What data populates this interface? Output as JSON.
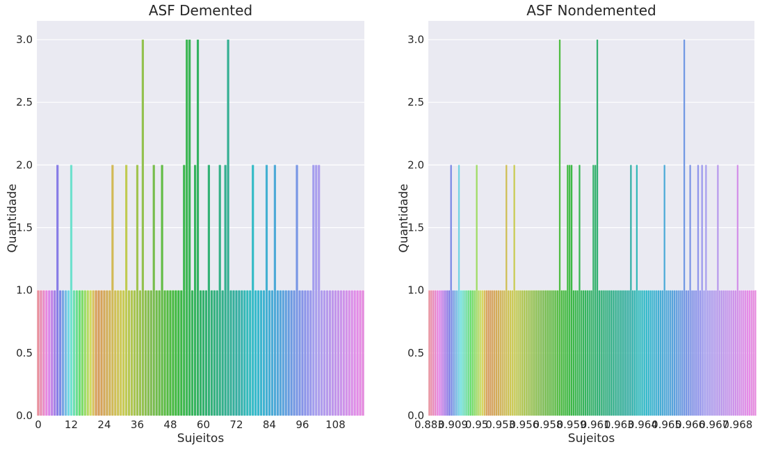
{
  "chart_data": [
    {
      "type": "bar",
      "title": "ASF Demented",
      "xlabel": "Sujeitos",
      "ylabel": "Quantidade",
      "ylim": [
        0,
        3.15
      ],
      "yticks": [
        "0.0",
        "0.5",
        "1.0",
        "1.5",
        "2.0",
        "2.5",
        "3.0"
      ],
      "ytick_values": [
        0,
        0.5,
        1.0,
        1.5,
        2.0,
        2.5,
        3.0
      ],
      "xticks": [
        "0",
        "12",
        "24",
        "36",
        "48",
        "60",
        "72",
        "84",
        "96",
        "108"
      ],
      "xtick_positions": [
        0,
        12,
        24,
        36,
        48,
        60,
        72,
        84,
        96,
        108
      ],
      "n_categories": 119,
      "grid": true,
      "palette": "husl",
      "values": [
        1,
        1,
        1,
        1,
        1,
        1,
        1,
        2,
        1,
        1,
        1,
        1,
        2,
        1,
        1,
        1,
        1,
        1,
        1,
        1,
        1,
        1,
        1,
        1,
        1,
        1,
        1,
        2,
        1,
        1,
        1,
        1,
        2,
        1,
        1,
        1,
        2,
        1,
        3,
        1,
        1,
        1,
        2,
        1,
        1,
        2,
        1,
        1,
        1,
        1,
        1,
        1,
        1,
        2,
        3,
        3,
        1,
        2,
        3,
        1,
        1,
        1,
        2,
        1,
        1,
        1,
        2,
        1,
        2,
        3,
        1,
        1,
        1,
        1,
        1,
        1,
        1,
        1,
        2,
        1,
        1,
        1,
        1,
        2,
        1,
        1,
        2,
        1,
        1,
        1,
        1,
        1,
        1,
        1,
        2,
        1,
        1,
        1,
        1,
        1,
        2,
        2,
        2,
        1,
        1,
        1,
        1,
        1,
        1,
        1,
        1,
        1,
        1,
        1,
        1,
        1,
        1,
        1,
        1
      ]
    },
    {
      "type": "bar",
      "title": "ASF Nondemented",
      "xlabel": "Sujeitos",
      "ylabel": "Quantidade",
      "ylim": [
        0,
        3.15
      ],
      "yticks": [
        "0.0",
        "0.5",
        "1.0",
        "1.5",
        "2.0",
        "2.5",
        "3.0"
      ],
      "ytick_values": [
        0,
        0.5,
        1.0,
        1.5,
        2.0,
        2.5,
        3.0
      ],
      "xticks": [
        "0.883",
        "0.909",
        "0.95",
        "0.953",
        "0.956",
        "0.958",
        "0.959",
        "0.961",
        "0.963",
        "0.964",
        "0.965",
        "0.966",
        "0.967",
        "0.968"
      ],
      "xtick_positions": [
        0,
        12,
        24,
        36,
        48,
        60,
        72,
        84,
        96,
        108,
        120,
        132,
        144,
        156
      ],
      "n_categories": 165,
      "grid": true,
      "palette": "husl",
      "values": [
        1,
        1,
        1,
        1,
        1,
        1,
        1,
        1,
        1,
        1,
        1,
        2,
        1,
        1,
        1,
        2,
        1,
        1,
        1,
        1,
        1,
        1,
        1,
        1,
        2,
        1,
        1,
        1,
        1,
        1,
        1,
        1,
        1,
        1,
        1,
        1,
        1,
        1,
        1,
        2,
        1,
        1,
        1,
        2,
        1,
        1,
        1,
        1,
        1,
        1,
        1,
        1,
        1,
        1,
        1,
        1,
        1,
        1,
        1,
        1,
        1,
        1,
        1,
        1,
        1,
        1,
        3,
        1,
        1,
        1,
        2,
        2,
        2,
        1,
        1,
        1,
        2,
        1,
        1,
        1,
        1,
        1,
        1,
        2,
        2,
        3,
        1,
        1,
        1,
        1,
        1,
        1,
        1,
        1,
        1,
        1,
        1,
        1,
        1,
        1,
        1,
        1,
        2,
        1,
        1,
        2,
        1,
        1,
        1,
        1,
        1,
        1,
        1,
        1,
        1,
        1,
        1,
        1,
        1,
        2,
        1,
        1,
        1,
        1,
        1,
        1,
        1,
        1,
        1,
        3,
        1,
        1,
        2,
        1,
        1,
        1,
        2,
        1,
        2,
        1,
        2,
        1,
        1,
        1,
        1,
        1,
        2,
        1,
        1,
        1,
        1,
        1,
        1,
        1,
        1,
        1,
        2,
        1,
        1,
        1,
        1,
        1,
        1,
        1,
        1,
        1
      ]
    }
  ]
}
